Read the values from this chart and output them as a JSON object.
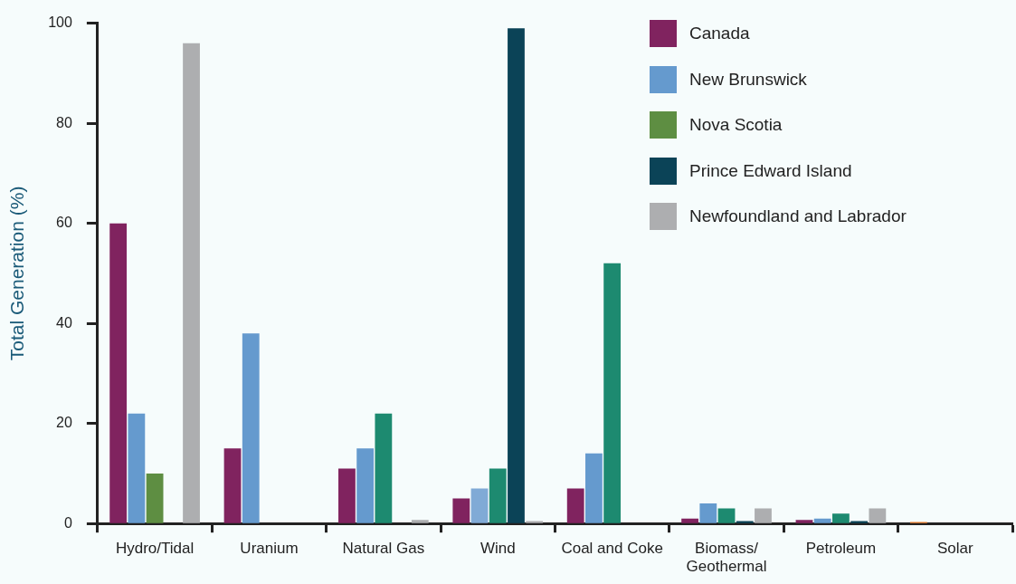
{
  "chart_data": {
    "type": "bar",
    "categories": [
      "Hydro/Tidal",
      "Uranium",
      "Natural Gas",
      "Wind",
      "Coal and Coke",
      "Biomass/ Geothermal",
      "Petroleum",
      "Solar"
    ],
    "series": [
      {
        "name": "Canada",
        "color": "#80235f",
        "colors": [
          "#80235f",
          "#80235f",
          "#80235f",
          "#80235f",
          "#80235f",
          "#80235f",
          "#80235f",
          "#f07f2a"
        ],
        "values": [
          60,
          15,
          11,
          5,
          7,
          1,
          0.7,
          0.3
        ]
      },
      {
        "name": "New Brunswick",
        "color": "#659ace",
        "colors": [
          "#659ace",
          "#659ace",
          "#659ace",
          "#80aad6",
          "#659ace",
          "#659ace",
          "#659ace",
          "#659ace"
        ],
        "values": [
          22,
          38,
          15,
          7,
          14,
          4,
          1,
          0
        ]
      },
      {
        "name": "Nova Scotia",
        "color": "#5e8e42",
        "colors": [
          "#5e8e42",
          "#1d8a70",
          "#1d8a70",
          "#1d8a70",
          "#1d8a70",
          "#1d8a70",
          "#1d8a70",
          "#1d8a70"
        ],
        "values": [
          10,
          0,
          22,
          11,
          52,
          3,
          2,
          0
        ]
      },
      {
        "name": "Prince Edward Island",
        "color": "#0b4357",
        "values": [
          0,
          0,
          0,
          99,
          0,
          0.5,
          0.5,
          0
        ]
      },
      {
        "name": "Newfoundland and Labrador",
        "color": "#adaeb0",
        "values": [
          96,
          0,
          0.7,
          0.5,
          0,
          3,
          3,
          0
        ]
      }
    ],
    "ylabel": "Total Generation (%)",
    "ylim": [
      0,
      100
    ],
    "yticks": [
      0,
      20,
      40,
      60,
      80,
      100
    ],
    "grid": false,
    "legend": "top right"
  }
}
